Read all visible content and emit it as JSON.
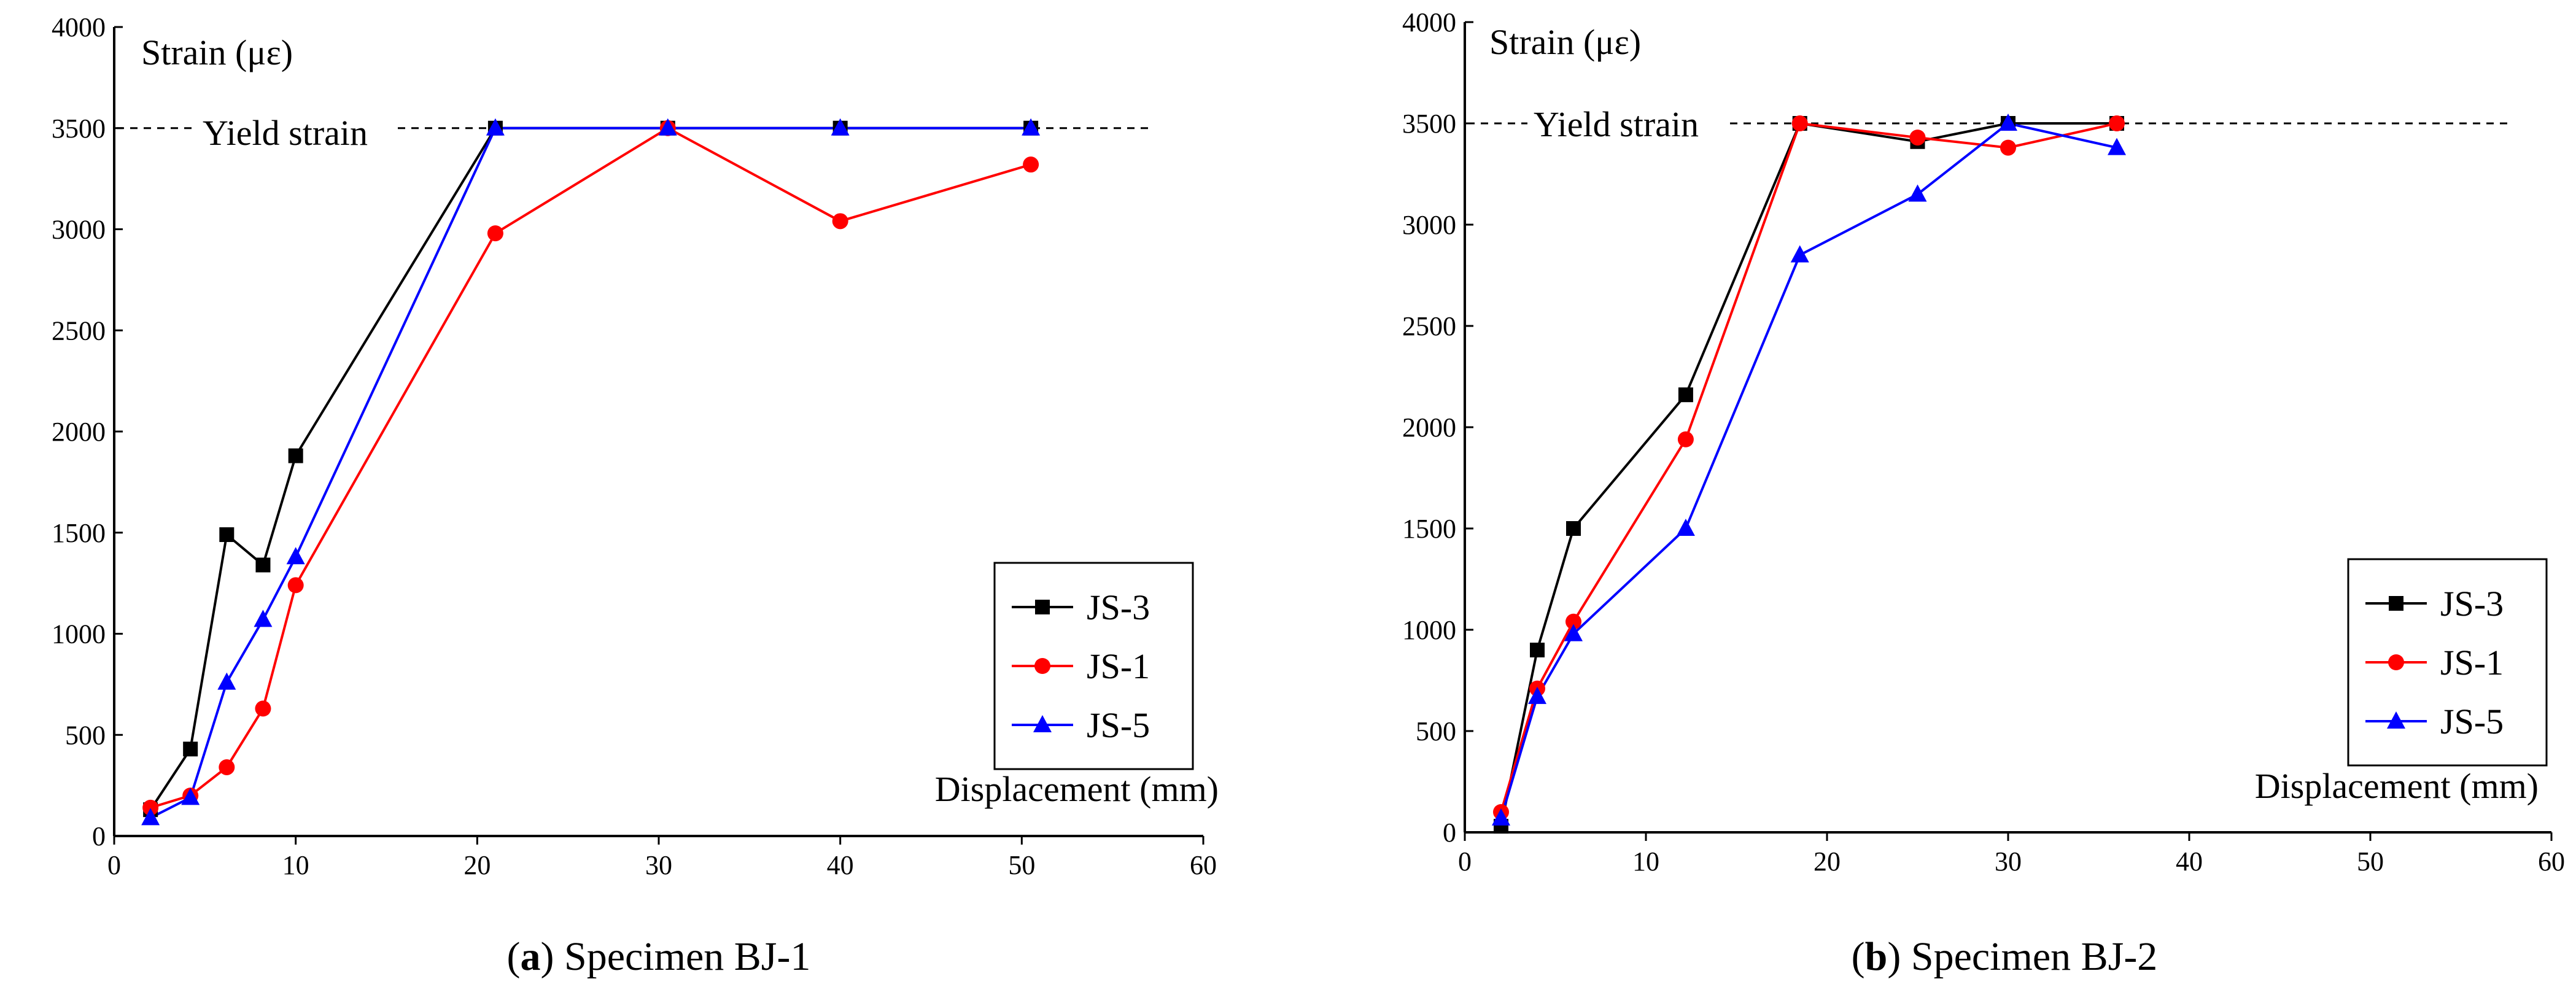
{
  "chart_data": [
    {
      "type": "line",
      "panel": "a",
      "caption_letter": "a",
      "caption_text": " Specimen BJ-1",
      "caption_open": "(",
      "caption_close": ")",
      "ylabel": "Strain (με)",
      "xlabel": "Displacement (mm)",
      "xlim": [
        0,
        60
      ],
      "ylim": [
        0,
        4000
      ],
      "xticks": [
        0,
        10,
        20,
        30,
        40,
        50,
        60
      ],
      "yticks": [
        0,
        500,
        1000,
        1500,
        2000,
        2500,
        3000,
        3500,
        4000
      ],
      "yield": {
        "label": "Yield strain",
        "value": 3500
      },
      "legend_position": "bottom-right",
      "series": [
        {
          "name": "JS-3",
          "color": "#000000",
          "marker": "square",
          "x": [
            2,
            4.2,
            6.2,
            8.2,
            10,
            21,
            30.5,
            40,
            50.5
          ],
          "y": [
            130,
            430,
            1490,
            1340,
            1880,
            3500,
            3500,
            3500,
            3500
          ]
        },
        {
          "name": "JS-1",
          "color": "#ff0000",
          "marker": "circle",
          "x": [
            2,
            4.2,
            6.2,
            8.2,
            10,
            21,
            30.5,
            40,
            50.5
          ],
          "y": [
            140,
            200,
            340,
            630,
            1240,
            2980,
            3500,
            3040,
            3320
          ]
        },
        {
          "name": "JS-5",
          "color": "#0000ff",
          "marker": "triangle",
          "x": [
            2,
            4.2,
            6.2,
            8.2,
            10,
            21,
            30.5,
            40,
            50.5
          ],
          "y": [
            90,
            190,
            760,
            1070,
            1380,
            3500,
            3500,
            3500,
            3500
          ]
        }
      ]
    },
    {
      "type": "line",
      "panel": "b",
      "caption_letter": "b",
      "caption_text": " Specimen BJ-2",
      "caption_open": "(",
      "caption_close": ")",
      "ylabel": "Strain (με)",
      "xlabel": "Displacement (mm)",
      "xlim": [
        0,
        60
      ],
      "ylim": [
        0,
        4000
      ],
      "xticks": [
        0,
        10,
        20,
        30,
        40,
        50,
        60
      ],
      "yticks": [
        0,
        500,
        1000,
        1500,
        2000,
        2500,
        3000,
        3500,
        4000
      ],
      "yield": {
        "label": "Yield strain",
        "value": 3500
      },
      "legend_position": "bottom-right",
      "series": [
        {
          "name": "JS-3",
          "color": "#000000",
          "marker": "square",
          "x": [
            2,
            4,
            6,
            12.2,
            18.5,
            25,
            30,
            36
          ],
          "y": [
            30,
            900,
            1500,
            2160,
            3500,
            3410,
            3500,
            3500
          ]
        },
        {
          "name": "JS-1",
          "color": "#ff0000",
          "marker": "circle",
          "x": [
            2,
            4,
            6,
            12.2,
            18.5,
            25,
            30,
            36
          ],
          "y": [
            100,
            710,
            1040,
            1940,
            3500,
            3430,
            3380,
            3500
          ]
        },
        {
          "name": "JS-5",
          "color": "#0000ff",
          "marker": "triangle",
          "x": [
            2,
            4,
            6,
            12.2,
            18.5,
            25,
            30,
            36
          ],
          "y": [
            70,
            670,
            980,
            1500,
            2850,
            3150,
            3500,
            3380
          ]
        }
      ]
    }
  ]
}
